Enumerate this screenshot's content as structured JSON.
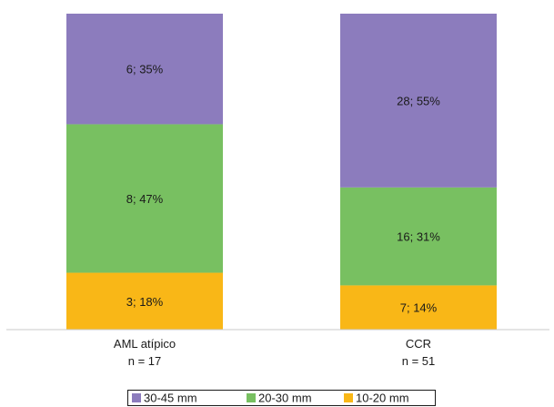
{
  "chart_data": {
    "type": "bar",
    "stacked": true,
    "normalized": true,
    "categories": [
      "AML atípico",
      "CCR"
    ],
    "category_sublabels": [
      "n = 17",
      "n = 51"
    ],
    "series": [
      {
        "name": "10-20 mm",
        "color": "#f9b717",
        "values": [
          18,
          14
        ],
        "counts": [
          3,
          7
        ],
        "labels": [
          "3; 18%",
          "7; 14%"
        ]
      },
      {
        "name": "20-30 mm",
        "color": "#78c061",
        "values": [
          47,
          31
        ],
        "counts": [
          8,
          16
        ],
        "labels": [
          "8; 47%",
          "16; 31%"
        ]
      },
      {
        "name": "30-45 mm",
        "color": "#8c7cbd",
        "values": [
          35,
          55
        ],
        "counts": [
          6,
          28
        ],
        "labels": [
          "6; 35%",
          "28; 55%"
        ]
      }
    ],
    "legend_order": [
      "30-45 mm",
      "20-30 mm",
      "10-20 mm"
    ],
    "legend_position": "bottom",
    "ylim": [
      0,
      100
    ],
    "grid": false,
    "title": "",
    "xlabel": "",
    "ylabel": ""
  }
}
